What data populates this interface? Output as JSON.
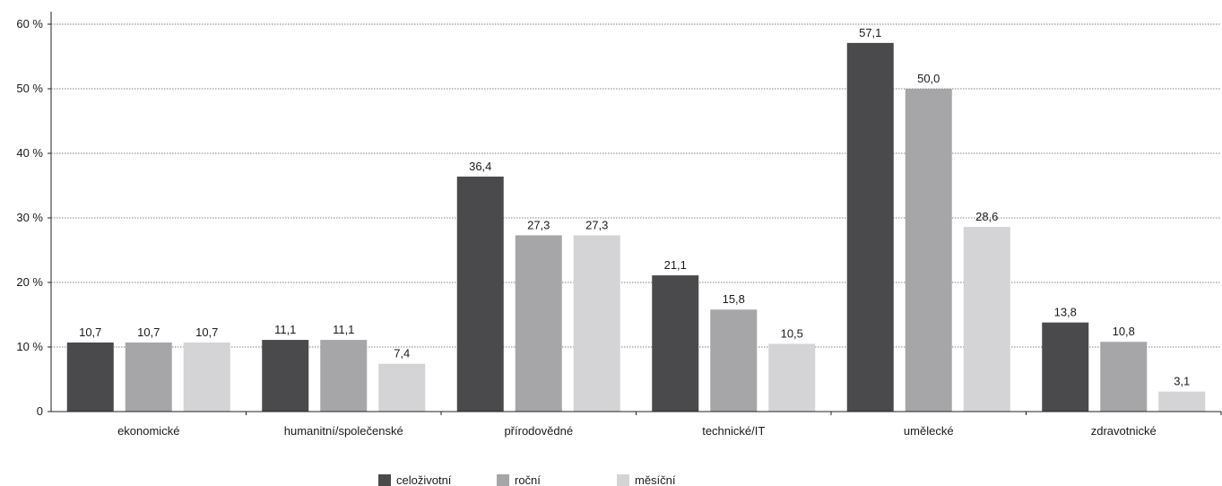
{
  "chart_data": {
    "type": "bar",
    "categories": [
      "ekonomické",
      "humanitní/společenské",
      "přírodovědné",
      "technické/IT",
      "umělecké",
      "zdravotnické"
    ],
    "series": [
      {
        "name": "celoživotní",
        "color": "#4a4a4c",
        "values": [
          10.7,
          11.1,
          36.4,
          21.1,
          57.1,
          13.8
        ],
        "labels": [
          "10,7",
          "11,1",
          "36,4",
          "21,1",
          "57,1",
          "13,8"
        ]
      },
      {
        "name": "roční",
        "color": "#a6a6a8",
        "values": [
          10.7,
          11.1,
          27.3,
          15.8,
          50.0,
          10.8
        ],
        "labels": [
          "10,7",
          "11,1",
          "27,3",
          "15,8",
          "50,0",
          "10,8"
        ]
      },
      {
        "name": "měsíční",
        "color": "#d4d4d6",
        "values": [
          10.7,
          7.4,
          27.3,
          10.5,
          28.6,
          3.1
        ],
        "labels": [
          "10,7",
          "7,4",
          "27,3",
          "10,5",
          "28,6",
          "3,1"
        ]
      }
    ],
    "ylim": [
      0,
      60
    ],
    "yticks": [
      0,
      10,
      20,
      30,
      40,
      50,
      60
    ],
    "ytick_labels": [
      "0",
      "10 %",
      "20 %",
      "30 %",
      "40 %",
      "50 %",
      "60 %"
    ],
    "grid": true,
    "legend_position": "bottom-center"
  }
}
